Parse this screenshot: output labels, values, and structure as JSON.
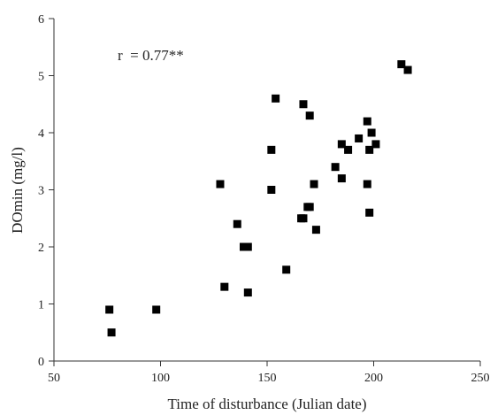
{
  "chart_data": {
    "type": "scatter",
    "title": "",
    "xlabel": "Time of disturbance (Julian date)",
    "ylabel": "DOmin (mg/l)",
    "xlim": [
      50,
      250
    ],
    "ylim": [
      0,
      6
    ],
    "xticks": [
      50,
      100,
      150,
      200,
      250
    ],
    "yticks": [
      0,
      1,
      2,
      3,
      4,
      5,
      6
    ],
    "grid": false,
    "legend": "none",
    "marker": "square",
    "marker_color": "#000000",
    "annotation": "r  = 0.77**",
    "series": [
      {
        "points": [
          [
            76,
            0.9
          ],
          [
            77,
            0.5
          ],
          [
            98,
            0.9
          ],
          [
            128,
            3.1
          ],
          [
            130,
            1.3
          ],
          [
            136,
            2.4
          ],
          [
            139,
            2.0
          ],
          [
            141,
            2.0
          ],
          [
            141,
            1.2
          ],
          [
            152,
            3.7
          ],
          [
            152,
            3.0
          ],
          [
            154,
            4.6
          ],
          [
            159,
            1.6
          ],
          [
            166,
            2.5
          ],
          [
            167,
            2.5
          ],
          [
            167,
            4.5
          ],
          [
            169,
            2.7
          ],
          [
            170,
            2.7
          ],
          [
            170,
            4.3
          ],
          [
            172,
            3.1
          ],
          [
            173,
            2.3
          ],
          [
            182,
            3.4
          ],
          [
            185,
            3.8
          ],
          [
            185,
            3.2
          ],
          [
            188,
            3.7
          ],
          [
            193,
            3.9
          ],
          [
            197,
            4.2
          ],
          [
            197,
            3.1
          ],
          [
            198,
            3.7
          ],
          [
            198,
            2.6
          ],
          [
            199,
            4.0
          ],
          [
            201,
            3.8
          ],
          [
            213,
            5.2
          ],
          [
            216,
            5.1
          ]
        ]
      }
    ]
  }
}
